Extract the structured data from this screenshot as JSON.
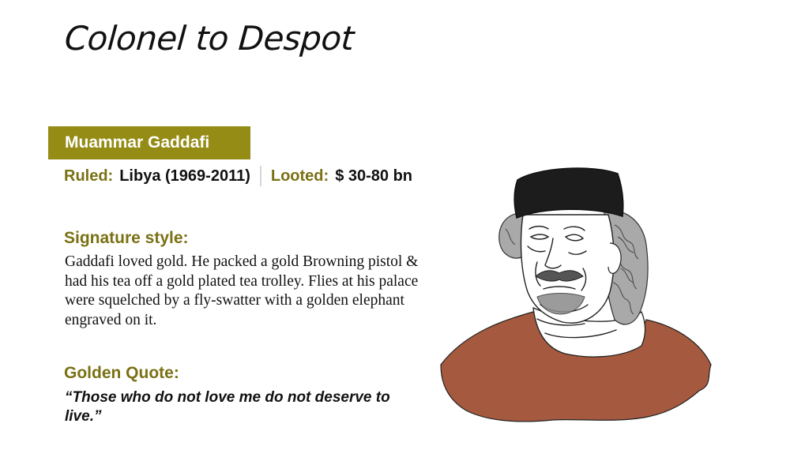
{
  "title": "Colonel to Despot",
  "name": "Muammar Gaddafi",
  "ruled": {
    "label": "Ruled:",
    "value": "Libya (1969-2011)"
  },
  "looted": {
    "label": "Looted:",
    "value": "$ 30-80 bn"
  },
  "signature": {
    "heading": "Signature style:",
    "text": "Gaddafi loved gold. He packed a gold Browning pistol & had his tea off a gold plated tea trolley. Flies at his palace were squelched by a fly-swatter with a golden elephant engraved on it."
  },
  "quote": {
    "heading": "Golden Quote:",
    "text": "“Those who do not love me do not deserve to live.”"
  },
  "colors": {
    "accent": "#958c16",
    "label": "#7a7114",
    "clothing": "#a5593f",
    "hair": "#a9a9a9",
    "hat": "#1c1c1c"
  }
}
